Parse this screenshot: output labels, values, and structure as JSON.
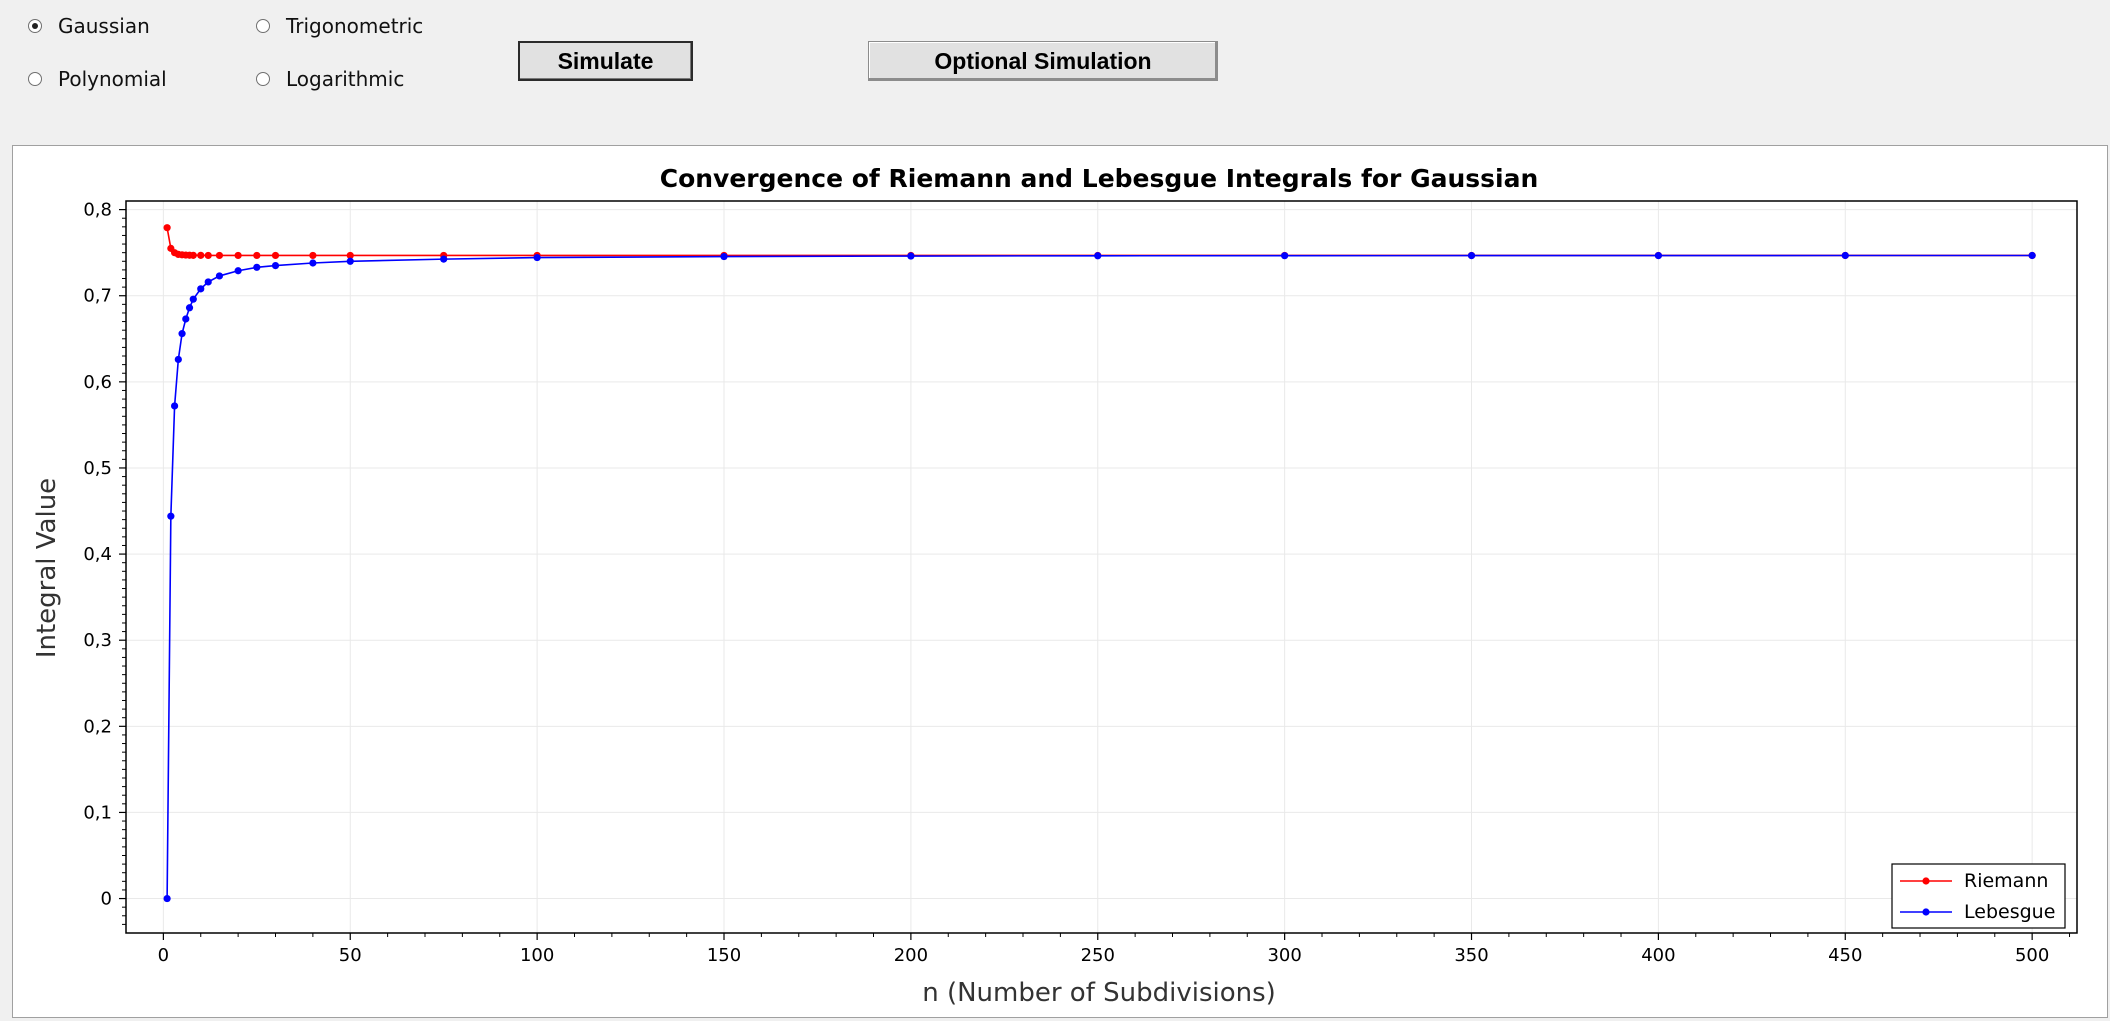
{
  "controls": {
    "function_options": [
      {
        "label": "Gaussian",
        "checked": true
      },
      {
        "label": "Trigonometric",
        "checked": false
      },
      {
        "label": "Polynomial",
        "checked": false
      },
      {
        "label": "Logarithmic",
        "checked": false
      }
    ],
    "simulate_label": "Simulate",
    "optional_simulation_label": "Optional Simulation"
  },
  "chart_data": {
    "type": "line",
    "title": "Convergence of Riemann and Lebesgue Integrals for Gaussian",
    "xlabel": "n (Number of Subdivisions)",
    "ylabel": "Integral Value",
    "xlim": [
      -10,
      512
    ],
    "ylim": [
      -0.04,
      0.81
    ],
    "x_ticks": [
      0,
      50,
      100,
      150,
      200,
      250,
      300,
      350,
      400,
      450,
      500
    ],
    "y_ticks": [
      0,
      0.1,
      0.2,
      0.3,
      0.4,
      0.5,
      0.6,
      0.7,
      0.8
    ],
    "y_tick_labels": [
      "0",
      "0,1",
      "0,2",
      "0,3",
      "0,4",
      "0,5",
      "0,6",
      "0,7",
      "0,8"
    ],
    "x": [
      1,
      2,
      3,
      4,
      5,
      6,
      7,
      8,
      10,
      12,
      15,
      20,
      25,
      30,
      40,
      50,
      75,
      100,
      150,
      200,
      250,
      300,
      350,
      400,
      450,
      500
    ],
    "series": [
      {
        "name": "Riemann",
        "color": "#ff0000",
        "values": [
          0.779,
          0.755,
          0.75,
          0.748,
          0.7475,
          0.7472,
          0.747,
          0.7469,
          0.7469,
          0.7468,
          0.7468,
          0.7468,
          0.7468,
          0.7468,
          0.7468,
          0.7468,
          0.7468,
          0.7468,
          0.7468,
          0.7468,
          0.7468,
          0.7468,
          0.7468,
          0.7468,
          0.7468,
          0.7468
        ]
      },
      {
        "name": "Lebesgue",
        "color": "#0000ff",
        "values": [
          0.0,
          0.444,
          0.572,
          0.626,
          0.656,
          0.673,
          0.686,
          0.696,
          0.708,
          0.716,
          0.723,
          0.729,
          0.733,
          0.735,
          0.738,
          0.74,
          0.7425,
          0.7443,
          0.7455,
          0.7461,
          0.7464,
          0.7465,
          0.7466,
          0.7466,
          0.7467,
          0.7467
        ]
      }
    ],
    "legend": [
      "Riemann",
      "Lebesgue"
    ],
    "legend_position": "bottom-right",
    "grid": true
  }
}
